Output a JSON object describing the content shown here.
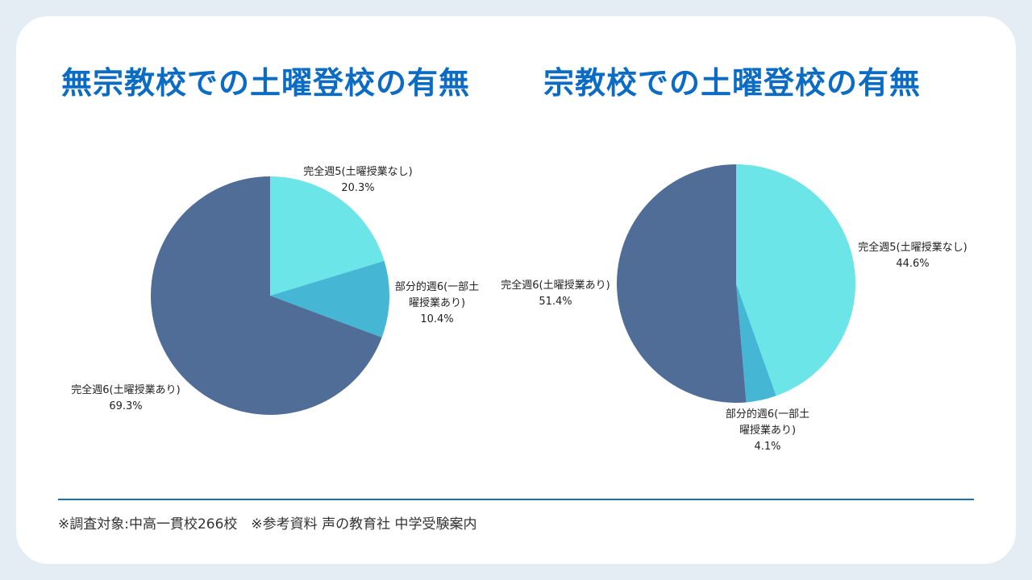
{
  "titles": {
    "left": "無宗教校での土曜登校の有無",
    "right": "宗教校での土曜登校の有無"
  },
  "footnote": "※調査対象:中高一貫校266校　※参考資料 声の教育社 中学受験案内",
  "colors": {
    "five_day": "#6ce5e8",
    "partial_six_day": "#45b7d5",
    "full_six_day": "#506d97",
    "title": "#0c6cc4",
    "divider": "#1b6fb5"
  },
  "chart_data": [
    {
      "type": "pie",
      "title": "無宗教校での土曜登校の有無",
      "slices": [
        {
          "label_lines": [
            "完全週5(土曜授業なし)"
          ],
          "value": 20.3,
          "pct_text": "20.3%",
          "color": "#6ce5e8"
        },
        {
          "label_lines": [
            "部分的週6(一部土",
            "曜授業あり)"
          ],
          "value": 10.4,
          "pct_text": "10.4%",
          "color": "#45b7d5"
        },
        {
          "label_lines": [
            "完全週6(土曜授業あり)"
          ],
          "value": 69.3,
          "pct_text": "69.3%",
          "color": "#506d97"
        }
      ]
    },
    {
      "type": "pie",
      "title": "宗教校での土曜登校の有無",
      "slices": [
        {
          "label_lines": [
            "完全週5(土曜授業なし)"
          ],
          "value": 44.6,
          "pct_text": "44.6%",
          "color": "#6ce5e8"
        },
        {
          "label_lines": [
            "部分的週6(一部土",
            "曜授業あり)"
          ],
          "value": 4.1,
          "pct_text": "4.1%",
          "color": "#45b7d5"
        },
        {
          "label_lines": [
            "完全週6(土曜授業あり)"
          ],
          "value": 51.4,
          "pct_text": "51.4%",
          "color": "#506d97"
        }
      ]
    }
  ]
}
